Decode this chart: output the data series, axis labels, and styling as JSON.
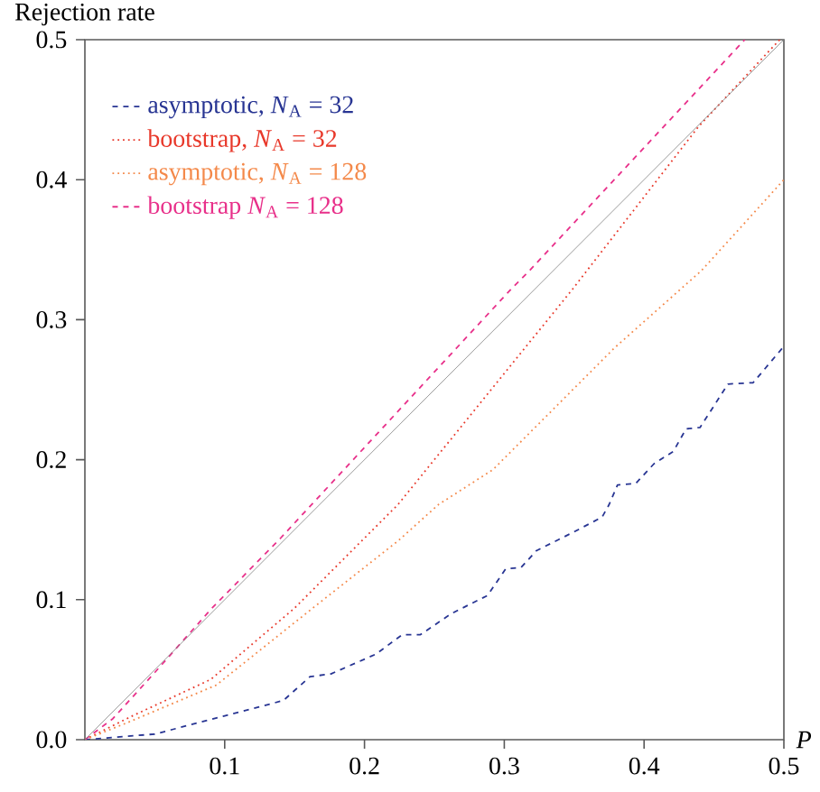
{
  "chart_data": {
    "type": "line",
    "xlabel": "*P*",
    "ylabel": "Rejection rate",
    "xlim": [
      0,
      0.5
    ],
    "ylim": [
      0,
      0.5
    ],
    "xticks": [
      0.1,
      0.2,
      0.3,
      0.4,
      0.5
    ],
    "yticks": [
      {
        "value": 0,
        "label": "0.0"
      },
      0.1,
      0.2,
      0.3,
      0.4,
      0.5
    ],
    "legend": "top left",
    "grid": false,
    "series": [
      {
        "name": "asymptotic, *N*$_{A}$ = 32",
        "color": "#283593",
        "line_style": "dashed",
        "x": [
          0,
          0.05,
          0.1,
          0.142,
          0.161,
          0.176,
          0.208,
          0.227,
          0.24,
          0.262,
          0.288,
          0.301,
          0.312,
          0.323,
          0.349,
          0.37,
          0.375,
          0.381,
          0.394,
          0.407,
          0.421,
          0.43,
          0.44,
          0.46,
          0.478,
          0.5
        ],
        "values": [
          0,
          0.004,
          0.017,
          0.028,
          0.045,
          0.047,
          0.061,
          0.075,
          0.075,
          0.09,
          0.103,
          0.122,
          0.123,
          0.135,
          0.148,
          0.159,
          0.168,
          0.182,
          0.183,
          0.197,
          0.206,
          0.222,
          0.223,
          0.254,
          0.255,
          0.281
        ]
      },
      {
        "name": "bootstrap, *N*$_{A}$ = 32",
        "color": "#e8382a",
        "line_style": "dotted",
        "x": [
          0,
          0.034,
          0.09,
          0.15,
          0.198,
          0.224,
          0.349,
          0.439,
          0.497
        ],
        "values": [
          0,
          0.017,
          0.043,
          0.094,
          0.142,
          0.168,
          0.322,
          0.438,
          0.5
        ]
      },
      {
        "name": "asymptotic, *N*$_{A}$ = 128",
        "color": "#f4894a",
        "line_style": "dotted",
        "x": [
          0,
          0.03,
          0.094,
          0.163,
          0.224,
          0.253,
          0.292,
          0.379,
          0.441,
          0.5
        ],
        "values": [
          0,
          0.012,
          0.039,
          0.094,
          0.142,
          0.168,
          0.193,
          0.28,
          0.335,
          0.4
        ]
      },
      {
        "name": "bootstrap *N*$_{A}$ = 128",
        "color": "#e8308a",
        "line_style": "dashed",
        "x": [
          0,
          0.02,
          0.05,
          0.09,
          0.14,
          0.305,
          0.318,
          0.472
        ],
        "values": [
          0,
          0.015,
          0.048,
          0.093,
          0.144,
          0.322,
          0.335,
          0.5
        ]
      },
      {
        "color": "#808080",
        "line_style": "solid",
        "x": [
          0,
          0.5
        ],
        "values": [
          0,
          0.5
        ]
      }
    ]
  }
}
